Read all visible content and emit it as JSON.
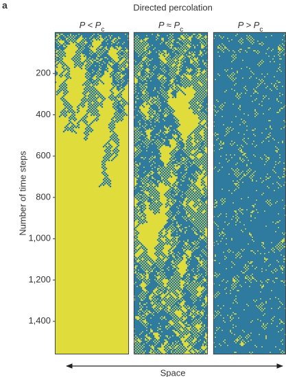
{
  "panel_label": "a",
  "chart_data": {
    "type": "spacetime",
    "title": "Directed percolation",
    "panels": [
      {
        "label": "P < P",
        "sub": "c"
      },
      {
        "label": "P ≈ P",
        "sub": "c"
      },
      {
        "label": "P > P",
        "sub": "c"
      }
    ],
    "ylabel": "Number of time steps",
    "xlabel": "Space",
    "ylim": [
      0,
      1560
    ],
    "yticks": [
      200,
      400,
      600,
      800,
      {
        "value": 1000,
        "label": "1,000"
      },
      {
        "value": 1200,
        "label": "1,200"
      },
      {
        "value": 1400,
        "label": "1,400"
      }
    ]
  }
}
